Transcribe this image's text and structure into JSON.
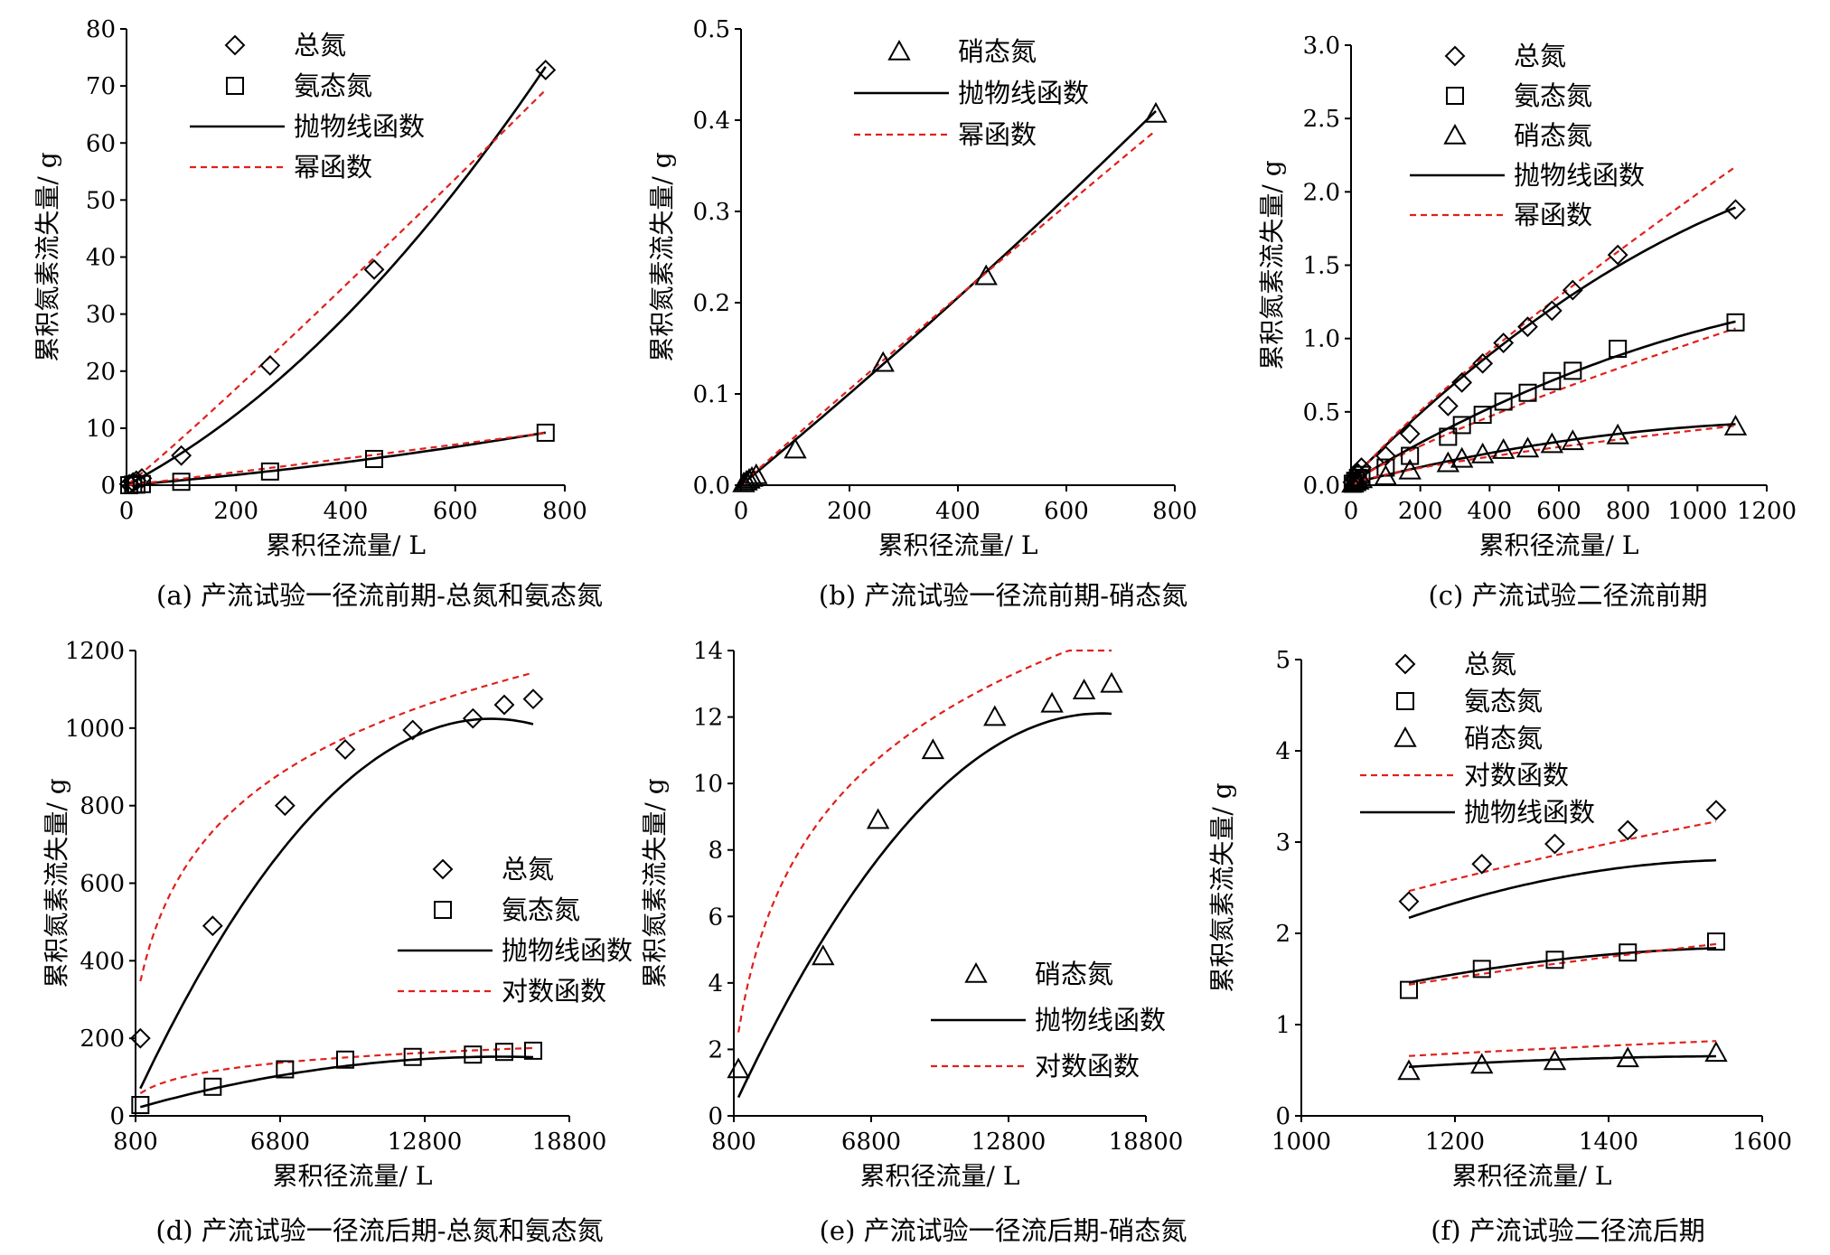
{
  "legend_names": {
    "tn": "总氮",
    "an": "氨态氮",
    "nn": "硝态氮",
    "parabola": "抛物线函数",
    "power": "幂函数",
    "log": "对数函数"
  },
  "colors": {
    "markers": "#000000",
    "fit_solid": "#000000",
    "fit_dashed": "#e0201b"
  },
  "chart_data": [
    {
      "id": "a",
      "type": "scatter",
      "caption": "(a) 产流试验一径流前期-总氮和氨态氮",
      "xlabel": "累积径流量/ L",
      "ylabel": "累积氮素流失量/ g",
      "xlim": [
        0,
        800
      ],
      "ylim": [
        0,
        80
      ],
      "xticks": [
        0,
        200,
        400,
        600,
        800
      ],
      "yticks": [
        0,
        10,
        20,
        30,
        40,
        50,
        60,
        70,
        80
      ],
      "legend": [
        "tn",
        "an",
        "parabola",
        "power"
      ],
      "series": [
        {
          "name": "总氮",
          "marker": "diamond",
          "x": [
            5,
            12,
            18,
            28,
            100,
            262,
            452,
            765
          ],
          "y": [
            0.2,
            0.5,
            0.8,
            1.2,
            5.2,
            21.0,
            37.8,
            72.8
          ],
          "fits": {
            "parabola": [
              0,
              0.05,
              6e-05
            ],
            "power": [
              0.065,
              1.05
            ]
          }
        },
        {
          "name": "氨态氮",
          "marker": "square",
          "x": [
            5,
            12,
            18,
            28,
            100,
            262,
            452,
            765
          ],
          "y": [
            0.0,
            0.1,
            0.1,
            0.2,
            0.6,
            2.4,
            4.6,
            9.2
          ],
          "fits": {
            "parabola": [
              0,
              0.008,
              5.3e-06
            ],
            "power": [
              0.0095,
              1.035
            ]
          }
        }
      ]
    },
    {
      "id": "b",
      "type": "scatter",
      "caption": "(b) 产流试验一径流前期-硝态氮",
      "xlabel": "累积径流量/ L",
      "ylabel": "累积氮素流失量/ g",
      "xlim": [
        0,
        800
      ],
      "ylim": [
        0,
        0.5
      ],
      "xticks": [
        0,
        200,
        400,
        600,
        800
      ],
      "yticks": [
        0.0,
        0.1,
        0.2,
        0.3,
        0.4,
        0.5
      ],
      "legend": [
        "nn",
        "parabola",
        "power"
      ],
      "series": [
        {
          "name": "硝态氮",
          "marker": "triangle",
          "x": [
            5,
            10,
            15,
            20,
            28,
            100,
            262,
            452,
            765
          ],
          "y": [
            0.002,
            0.004,
            0.006,
            0.008,
            0.011,
            0.039,
            0.134,
            0.229,
            0.407
          ],
          "fits": {
            "parabola": [
              0,
              0.00049,
              6e-08
            ],
            "power": [
              0.0006,
              0.975
            ]
          }
        }
      ]
    },
    {
      "id": "c",
      "type": "scatter",
      "caption": "(c) 产流试验二径流前期",
      "xlabel": "累积径流量/ L",
      "ylabel": "累积氮素流失量/ g",
      "xlim": [
        0,
        1200
      ],
      "ylim": [
        0,
        3.0
      ],
      "xticks": [
        0,
        200,
        400,
        600,
        800,
        1000,
        1200
      ],
      "yticks": [
        0.0,
        0.5,
        1.0,
        1.5,
        2.0,
        2.5,
        3.0
      ],
      "legend": [
        "tn",
        "an",
        "nn",
        "parabola",
        "power"
      ],
      "series": [
        {
          "name": "总氮",
          "marker": "diamond",
          "x": [
            5,
            12,
            20,
            30,
            100,
            170,
            280,
            320,
            380,
            440,
            510,
            580,
            640,
            770,
            1110
          ],
          "y": [
            0.02,
            0.05,
            0.08,
            0.12,
            0.2,
            0.35,
            0.54,
            0.7,
            0.83,
            0.97,
            1.08,
            1.19,
            1.33,
            1.57,
            1.88
          ],
          "fits": {
            "parabola": [
              0.04,
              0.00238,
              -6.4e-07
            ],
            "power": [
              0.0056,
              0.85
            ]
          }
        },
        {
          "name": "氨态氮",
          "marker": "square",
          "x": [
            5,
            12,
            20,
            30,
            100,
            170,
            280,
            320,
            380,
            440,
            510,
            580,
            640,
            770,
            1110
          ],
          "y": [
            0.01,
            0.03,
            0.05,
            0.07,
            0.12,
            0.2,
            0.33,
            0.41,
            0.48,
            0.57,
            0.63,
            0.71,
            0.78,
            0.93,
            1.11
          ],
          "fits": {
            "parabola": [
              0.02,
              0.00142,
              -3.9e-07
            ],
            "power": [
              0.00365,
              0.81
            ]
          }
        },
        {
          "name": "硝态氮",
          "marker": "triangle",
          "x": [
            5,
            12,
            20,
            30,
            100,
            170,
            280,
            320,
            380,
            440,
            510,
            580,
            640,
            770,
            1110
          ],
          "y": [
            0.01,
            0.02,
            0.03,
            0.04,
            0.06,
            0.1,
            0.15,
            0.18,
            0.21,
            0.24,
            0.25,
            0.28,
            0.3,
            0.34,
            0.4
          ],
          "fits": {
            "parabola": [
              0.01,
              0.00061,
              -2.2e-07
            ],
            "power": [
              0.0026,
              0.72
            ]
          }
        }
      ]
    },
    {
      "id": "d",
      "type": "scatter",
      "caption": "(d) 产流试验一径流后期-总氮和氨态氮",
      "xlabel": "累积径流量/ L",
      "ylabel": "累积氮素流失量/ g",
      "xlim": [
        800,
        18800
      ],
      "ylim": [
        0,
        1200
      ],
      "xticks": [
        800,
        6800,
        12800,
        18800
      ],
      "yticks": [
        0,
        200,
        400,
        600,
        800,
        1000,
        1200
      ],
      "legend": [
        "tn",
        "an",
        "parabola",
        "log"
      ],
      "series": [
        {
          "name": "总氮",
          "marker": "diamond",
          "x": [
            1000,
            4000,
            7000,
            9500,
            12300,
            14800,
            16100,
            17300
          ],
          "y": [
            200,
            490,
            800,
            945,
            995,
            1025,
            1060,
            1075
          ],
          "fits": {
            "parabola": [
              -65,
              0.14,
              -4.5e-06
            ],
            "log": [
              -1580,
              279
            ]
          }
        },
        {
          "name": "氨态氮",
          "marker": "square",
          "x": [
            1000,
            4000,
            7000,
            9500,
            12300,
            14800,
            16100,
            17300
          ],
          "y": [
            28,
            75,
            120,
            145,
            152,
            158,
            165,
            168
          ],
          "fits": {
            "parabola": [
              5,
              0.0185,
              -5.8e-07
            ],
            "log": [
              -225,
              41
            ]
          }
        }
      ]
    },
    {
      "id": "e",
      "type": "scatter",
      "caption": "(e) 产流试验一径流后期-硝态氮",
      "xlabel": "累积径流量/ L",
      "ylabel": "累积氮素流失量/ g",
      "xlim": [
        800,
        18800
      ],
      "ylim": [
        0,
        14
      ],
      "xticks": [
        800,
        6800,
        12800,
        18800
      ],
      "yticks": [
        0,
        2,
        4,
        6,
        8,
        10,
        12,
        14
      ],
      "legend": [
        "nn",
        "parabola",
        "log"
      ],
      "series": [
        {
          "name": "硝态氮",
          "marker": "triangle",
          "x": [
            1000,
            4700,
            7100,
            9500,
            12200,
            14700,
            16100,
            17300
          ],
          "y": [
            1.4,
            4.8,
            8.9,
            11.0,
            12.0,
            12.4,
            12.8,
            13.0
          ],
          "fits": {
            "parabola": [
              -0.95,
              0.00155,
              -4.6e-08
            ],
            "log": [
              -26.5,
              4.2
            ]
          }
        }
      ]
    },
    {
      "id": "f",
      "type": "scatter",
      "caption": "(f) 产流试验二径流后期",
      "xlabel": "累积径流量/ L",
      "ylabel": "累积氮素流失量/ g",
      "xlim": [
        1000,
        1600
      ],
      "ylim": [
        0,
        5
      ],
      "xticks": [
        1000,
        1200,
        1400,
        1600
      ],
      "yticks": [
        0,
        1,
        2,
        3,
        4,
        5
      ],
      "legend": [
        "tn",
        "an",
        "nn",
        "log",
        "parabola"
      ],
      "series": [
        {
          "name": "总氮",
          "marker": "diamond",
          "x": [
            1140,
            1235,
            1330,
            1425,
            1540
          ],
          "y": [
            2.35,
            2.76,
            2.98,
            3.13,
            3.35
          ],
          "fits": {
            "parabola": [
              -5.42,
              0.01042,
              -3.3e-06
            ],
            "log": [
              -15.38,
              2.535
            ]
          }
        },
        {
          "name": "氨态氮",
          "marker": "square",
          "x": [
            1140,
            1235,
            1330,
            1425,
            1540
          ],
          "y": [
            1.38,
            1.61,
            1.71,
            1.79,
            1.91
          ],
          "fits": {
            "parabola": [
              -2.6,
              0.0055,
              -1.7e-06
            ],
            "log": [
              -8.98,
              1.48
            ]
          }
        },
        {
          "name": "硝态氮",
          "marker": "triangle",
          "x": [
            1140,
            1235,
            1330,
            1425,
            1540
          ],
          "y": [
            0.49,
            0.56,
            0.6,
            0.63,
            0.69
          ],
          "fits": {
            "parabola": [
              -0.85,
              0.0019,
              -6e-07
            ],
            "log": [
              -3.18,
              0.545
            ]
          }
        }
      ]
    }
  ]
}
